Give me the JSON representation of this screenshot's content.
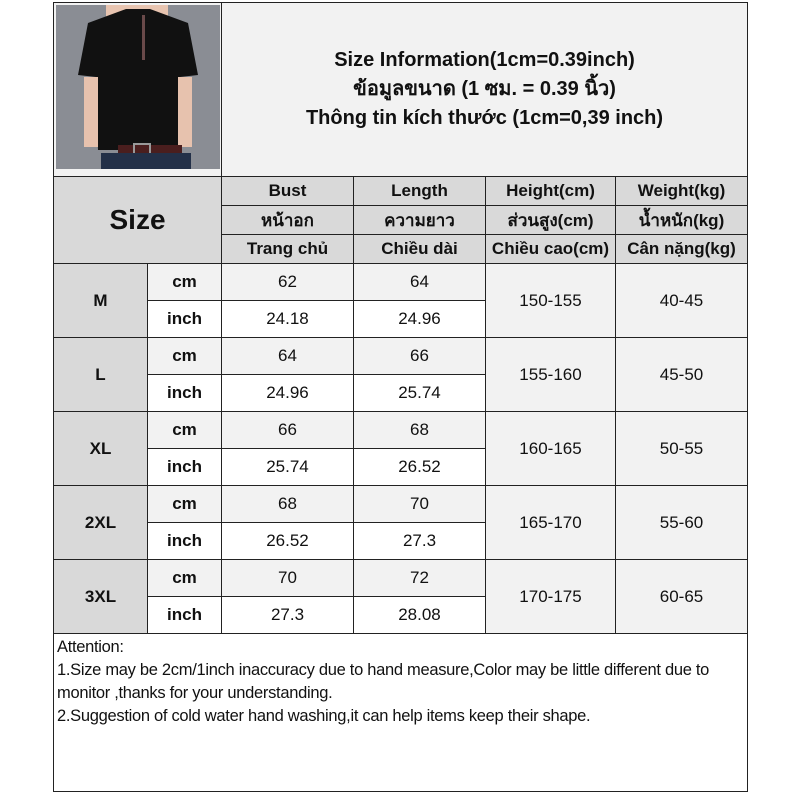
{
  "title_lines": [
    "Size Information(1cm=0.39inch)",
    "ข้อมูลขนาด (1 ซม. = 0.39 นิ้ว)",
    "Thông tin kích thước (1cm=0,39 inch)"
  ],
  "product_image": "black-short-sleeve-zip-polo-shirt",
  "size_header": "Size",
  "columns": [
    {
      "en": "Bust",
      "th": "หน้าอก",
      "vi": "Trang chủ"
    },
    {
      "en": "Length",
      "th": "ความยาว",
      "vi": "Chiều dài"
    },
    {
      "en": "Height(cm)",
      "th": "ส่วนสูง(cm)",
      "vi": "Chiều cao(cm)"
    },
    {
      "en": "Weight(kg)",
      "th": "น้ำหนัก(kg)",
      "vi": "Cân nặng(kg)"
    }
  ],
  "units": {
    "cm": "cm",
    "inch": "inch"
  },
  "rows": [
    {
      "size": "M",
      "cm": [
        "62",
        "64"
      ],
      "inch": [
        "24.18",
        "24.96"
      ],
      "height": "150-155",
      "weight": "40-45"
    },
    {
      "size": "L",
      "cm": [
        "64",
        "66"
      ],
      "inch": [
        "24.96",
        "25.74"
      ],
      "height": "155-160",
      "weight": "45-50"
    },
    {
      "size": "XL",
      "cm": [
        "66",
        "68"
      ],
      "inch": [
        "25.74",
        "26.52"
      ],
      "height": "160-165",
      "weight": "50-55"
    },
    {
      "size": "2XL",
      "cm": [
        "68",
        "70"
      ],
      "inch": [
        "26.52",
        "27.3"
      ],
      "height": "165-170",
      "weight": "55-60"
    },
    {
      "size": "3XL",
      "cm": [
        "70",
        "72"
      ],
      "inch": [
        "27.3",
        "28.08"
      ],
      "height": "170-175",
      "weight": "60-65"
    }
  ],
  "attention": {
    "heading": "Attention:",
    "notes": [
      "1.Size may be 2cm/1inch inaccuracy due to hand measure,Color may be little different due to monitor ,thanks for your understanding.",
      "2.Suggestion of cold water hand washing,it can help items keep their shape."
    ]
  }
}
